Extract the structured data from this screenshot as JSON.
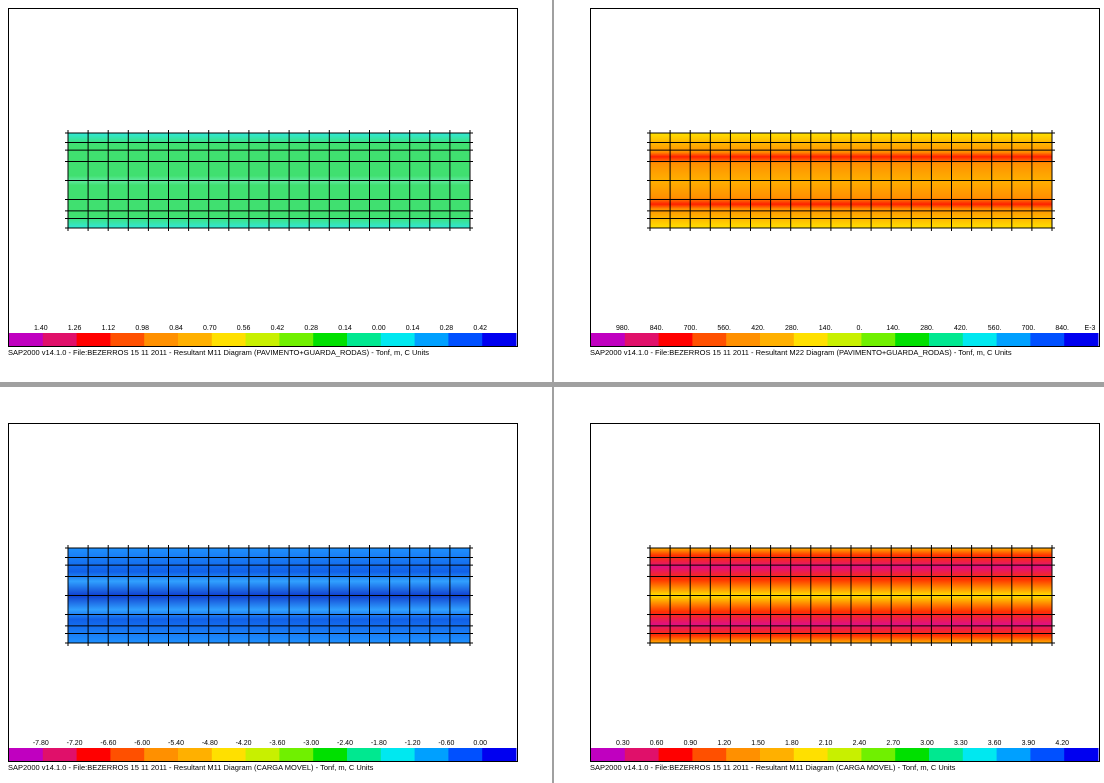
{
  "panels": [
    {
      "legend": [
        "1.40",
        "1.26",
        "1.12",
        "0.98",
        "0.84",
        "0.70",
        "0.56",
        "0.42",
        "0.28",
        "0.14",
        "0.00",
        "0.14",
        "0.28",
        "0.42"
      ],
      "caption": "SAP2000 v14.1.0 - File:BEZERROS 15 11 2011 -   Resultant M11 Diagram   (PAVIMENTO+GUARDA_RODAS) - Tonf, m, C Units"
    },
    {
      "legend": [
        "980.",
        "840.",
        "700.",
        "560.",
        "420.",
        "280.",
        "140.",
        "0.",
        "140.",
        "280.",
        "420.",
        "560.",
        "700.",
        "840.",
        "E-3"
      ],
      "caption": "SAP2000 v14.1.0 - File:BEZERROS 15 11 2011 -   Resultant M22 Diagram   (PAVIMENTO+GUARDA_RODAS) - Tonf, m, C Units"
    },
    {
      "legend": [
        "-7.80",
        "-7.20",
        "-6.60",
        "-6.00",
        "-5.40",
        "-4.80",
        "-4.20",
        "-3.60",
        "-3.00",
        "-2.40",
        "-1.80",
        "-1.20",
        "-0.60",
        "0.00"
      ],
      "caption": "SAP2000 v14.1.0 - File:BEZERROS 15 11 2011 -   Resultant M11 Diagram   (CARGA MOVEL) - Tonf, m, C Units"
    },
    {
      "legend": [
        "0.30",
        "0.60",
        "0.90",
        "1.20",
        "1.50",
        "1.80",
        "2.10",
        "2.40",
        "2.70",
        "3.00",
        "3.30",
        "3.60",
        "3.90",
        "4.20"
      ],
      "caption": "SAP2000 v14.1.0 - File:BEZERROS 15 11 2011 -   Resultant M11 Diagram   (CARGA MOVEL) - Tonf, m, C Units"
    }
  ]
}
